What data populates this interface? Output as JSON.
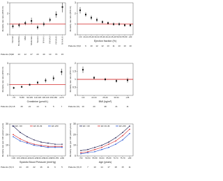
{
  "chart_data": [
    {
      "type": "forest",
      "y_label": "Mortality rate ratio (95% CI)",
      "rotate_labels": true,
      "categories": [
        "Normal",
        "Borderline",
        "Mild",
        "Moderate",
        "Severe",
        "NYHA I",
        "NYHA II",
        "NYHA III",
        "NYHA IV"
      ],
      "values": [
        0.8,
        0.9,
        1.1,
        1.3,
        0.7,
        1.0,
        1.4,
        1.9,
        2.6
      ],
      "ci_low": [
        0.6,
        0.7,
        0.9,
        1.0,
        0.5,
        0.8,
        1.2,
        1.6,
        2.1
      ],
      "ci_high": [
        1.0,
        1.1,
        1.3,
        1.6,
        0.9,
        1.2,
        1.6,
        2.2,
        3.0
      ],
      "ylim": [
        0,
        3
      ],
      "yticks": [
        0,
        1,
        2,
        3
      ],
      "reference": 1,
      "color": "#111111",
      "ref_color": "#cc0000",
      "patients_label": "Patients (%)",
      "patients": [
        32,
        22,
        12,
        27,
        23,
        40,
        10,
        70,
        15
      ]
    },
    {
      "type": "forest",
      "y_label": "Mortality rate ratio (95% CI)",
      "x_label": "Ejection fraction (%)",
      "categories": [
        "<20",
        "20-24",
        "25-29",
        "30-34",
        "35-39",
        "40-44",
        "45-49",
        "50-54",
        "55-59",
        "≥60"
      ],
      "values": [
        2.3,
        1.9,
        1.6,
        1.4,
        1.2,
        1.1,
        1.0,
        1.0,
        0.9,
        0.9
      ],
      "ci_low": [
        2.0,
        1.7,
        1.4,
        1.2,
        1.05,
        0.95,
        0.85,
        0.85,
        0.75,
        0.75
      ],
      "ci_high": [
        2.6,
        2.1,
        1.8,
        1.6,
        1.35,
        1.25,
        1.15,
        1.15,
        1.05,
        1.05
      ],
      "ylim": [
        0,
        3
      ],
      "yticks": [
        0,
        1,
        2,
        3
      ],
      "reference": 1,
      "color": "#111111",
      "ref_color": "#cc0000",
      "patients_label": "Patients (%)",
      "patients": [
        3,
        6,
        10,
        12,
        12,
        13,
        11,
        13,
        10,
        10
      ]
    },
    {
      "type": "forest",
      "y_label": "Mortality rate ratio (95% CI)",
      "x_label": "Creatinine (µmol/L)",
      "categories": [
        "<70",
        "70-89",
        "90-109",
        "110-129",
        "130-149",
        "150-169",
        "≥170"
      ],
      "values": [
        0.7,
        0.8,
        1.0,
        1.2,
        1.4,
        1.6,
        2.2
      ],
      "ci_low": [
        0.6,
        0.7,
        0.9,
        1.05,
        1.2,
        1.35,
        1.9
      ],
      "ci_high": [
        0.8,
        0.9,
        1.1,
        1.35,
        1.6,
        1.85,
        2.5
      ],
      "ylim": [
        0,
        3
      ],
      "yticks": [
        0,
        1,
        2,
        3
      ],
      "reference": 1,
      "color": "#111111",
      "ref_color": "#cc0000",
      "patients_label": "Patients (%)",
      "patients": [
        18,
        26,
        21,
        14,
        9,
        5,
        7
      ]
    },
    {
      "type": "forest",
      "y_label": "Mortality rate ratio (95% CI)",
      "x_label": "BMI (kg/m²)",
      "categories": [
        "<22",
        "22-24",
        "25-29",
        "30-34",
        "≥35"
      ],
      "values": [
        1.6,
        1.1,
        1.0,
        0.9,
        0.95
      ],
      "ci_low": [
        1.4,
        1.0,
        0.9,
        0.8,
        0.8
      ],
      "ci_high": [
        1.8,
        1.2,
        1.1,
        1.0,
        1.1
      ],
      "ylim": [
        0,
        2
      ],
      "yticks": [
        0,
        0.5,
        1,
        1.5,
        2
      ],
      "reference": 1,
      "color": "#111111",
      "ref_color": "#cc0000",
      "patients_label": "Patients (%)",
      "patients": [
        10,
        20,
        38,
        21,
        11
      ]
    },
    {
      "type": "line",
      "y_label": "Mortality rate (per 100 patient-years)",
      "x_label": "Systolic Blood Pressure (mmHg)",
      "categories": [
        "<100",
        "100-109",
        "110-119",
        "120-129",
        "130-139",
        "140-149",
        "150-159",
        "≥160"
      ],
      "series": [
        {
          "name": "EF <40",
          "color": "#1a1a4e",
          "values": [
            28,
            22,
            18,
            15,
            13,
            12,
            11,
            11
          ]
        },
        {
          "name": "EF 40-49",
          "color": "#d62728",
          "values": [
            20,
            16,
            13,
            11,
            10,
            9,
            9,
            9
          ]
        },
        {
          "name": "EF ≥50",
          "color": "#1f4fd1",
          "values": [
            18,
            14,
            12,
            10,
            9,
            8,
            8,
            8
          ]
        }
      ],
      "ylim": [
        0,
        30
      ],
      "yticks": [
        0,
        10,
        20,
        30
      ],
      "patients_label": "Patients (%)",
      "patients": [
        6,
        14,
        20,
        22,
        16,
        11,
        6,
        5
      ]
    },
    {
      "type": "line",
      "y_label": "Mortality rate (per 100 patient-years)",
      "x_label": "Age (years)",
      "categories": [
        "<50",
        "50-54",
        "55-59",
        "60-64",
        "65-69",
        "70-74",
        "75-79",
        "≥80"
      ],
      "series": [
        {
          "name": "EF <40",
          "color": "#1a1a4e",
          "values": [
            5,
            6,
            8,
            10,
            13,
            17,
            22,
            28
          ]
        },
        {
          "name": "EF 40-49",
          "color": "#d62728",
          "values": [
            3,
            4,
            6,
            8,
            11,
            14,
            19,
            25
          ]
        },
        {
          "name": "EF ≥50",
          "color": "#1f4fd1",
          "values": [
            2,
            3,
            4,
            6,
            8,
            11,
            15,
            21
          ]
        }
      ],
      "ylim": [
        0,
        30
      ],
      "yticks": [
        0,
        10,
        20,
        30
      ],
      "patients_label": "Patients (%)",
      "patients": [
        8,
        7,
        10,
        14,
        17,
        18,
        15,
        11
      ]
    }
  ]
}
